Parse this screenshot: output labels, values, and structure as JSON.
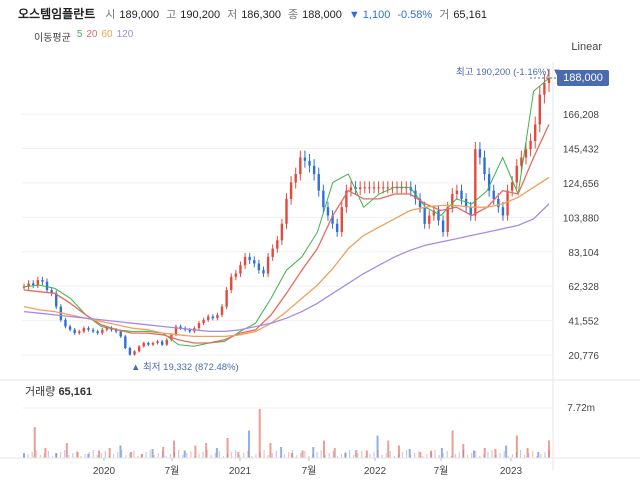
{
  "header": {
    "name": "오스템임플란트",
    "open_label": "시",
    "open": "189,000",
    "high_label": "고",
    "high": "190,200",
    "low_label": "저",
    "low": "186,300",
    "close_label": "종",
    "close": "188,000",
    "change": "▼ 1,100",
    "change_pct": "-0.58%",
    "volume_label": "거",
    "volume": "65,161"
  },
  "ma_legend": {
    "label": "이동평균",
    "items": [
      "5",
      "20",
      "60",
      "120"
    ]
  },
  "scale_button": "Linear",
  "current_price_label": "188,000",
  "high_marker": "최고 190,200 (-1.16%) ▼",
  "low_marker": "▲ 최저 19,332 (872.48%)",
  "volume_panel": {
    "label": "거래량",
    "value": "65,161"
  },
  "colors": {
    "up": "#e24a3b",
    "down": "#2f6fd8",
    "ma5": "#3cb44b",
    "ma20": "#e8695f",
    "ma60": "#f0a05a",
    "ma120": "#a58be6",
    "accent": "#4a6bb0"
  },
  "chart_data": {
    "type": "candlestick",
    "y_axis_labels": [
      "188,000",
      "166,208",
      "145,432",
      "124,656",
      "103,880",
      "83,104",
      "62,328",
      "41,552",
      "20,776"
    ],
    "y_axis_values": [
      188000,
      166208,
      145432,
      124656,
      103880,
      83104,
      62328,
      41552,
      20776
    ],
    "x_axis_labels": [
      "2020",
      "7월",
      "2021",
      "7월",
      "2022",
      "7월",
      "2023"
    ],
    "volume_axis_label": "7.72m",
    "ylim": [
      10000,
      200000
    ],
    "close_series": [
      62000,
      64000,
      63000,
      66000,
      65000,
      60000,
      58000,
      50000,
      42000,
      38000,
      36000,
      34000,
      35000,
      37000,
      36000,
      35000,
      34000,
      36000,
      37000,
      36000,
      35000,
      32000,
      25000,
      21000,
      23000,
      26000,
      28000,
      27000,
      28000,
      29000,
      27000,
      30000,
      33000,
      38000,
      37000,
      36000,
      35000,
      37000,
      40000,
      42000,
      44000,
      43000,
      45000,
      50000,
      60000,
      68000,
      70000,
      75000,
      80000,
      78000,
      76000,
      72000,
      70000,
      80000,
      85000,
      90000,
      100000,
      115000,
      125000,
      130000,
      140000,
      138000,
      135000,
      130000,
      120000,
      110000,
      105000,
      100000,
      95000,
      110000,
      120000,
      122000,
      121000,
      122000,
      122000,
      122000,
      122000,
      122000,
      122000,
      122000,
      122000,
      122000,
      122000,
      122000,
      120000,
      115000,
      110000,
      100000,
      105000,
      108000,
      102000,
      95000,
      110000,
      118000,
      120000,
      115000,
      110000,
      105000,
      145000,
      140000,
      130000,
      120000,
      115000,
      110000,
      105000,
      120000,
      125000,
      135000,
      140000,
      145000,
      150000,
      160000,
      178000,
      185000,
      188000
    ],
    "ma_series": [
      {
        "name": "5",
        "values": [
          62000,
          63000,
          61000,
          55000,
          45000,
          38000,
          36000,
          35000,
          35000,
          34000,
          27000,
          26000,
          28000,
          29000,
          35000,
          40000,
          55000,
          72000,
          80000,
          95000,
          125000,
          130000,
          110000,
          118000,
          122000,
          122000,
          110000,
          105000,
          115000,
          112000,
          120000,
          140000,
          118000,
          180000,
          188000
        ]
      },
      {
        "name": "20",
        "values": [
          60000,
          59000,
          58000,
          52000,
          45000,
          39000,
          36000,
          34000,
          34000,
          33000,
          30000,
          28000,
          28000,
          30000,
          34000,
          36000,
          45000,
          58000,
          72000,
          85000,
          105000,
          120000,
          115000,
          115000,
          118000,
          118000,
          112000,
          108000,
          110000,
          105000,
          110000,
          120000,
          118000,
          140000,
          160000
        ]
      },
      {
        "name": "60",
        "values": [
          50000,
          48000,
          47000,
          45000,
          43000,
          41000,
          39000,
          37000,
          36000,
          34000,
          33000,
          32000,
          32000,
          32000,
          33000,
          35000,
          40000,
          47000,
          55000,
          63000,
          73000,
          85000,
          93000,
          98000,
          103000,
          108000,
          110000,
          111000,
          111000,
          110000,
          110000,
          112000,
          116000,
          122000,
          128000
        ]
      },
      {
        "name": "120",
        "values": [
          47000,
          46000,
          45000,
          44000,
          43000,
          42000,
          41000,
          40000,
          39000,
          38000,
          37000,
          36000,
          35000,
          35000,
          36000,
          38000,
          40000,
          43000,
          47000,
          52000,
          58000,
          64000,
          70000,
          75000,
          80000,
          84000,
          87000,
          89000,
          91000,
          93000,
          95000,
          97000,
          99000,
          103000,
          112000
        ]
      }
    ],
    "volume_spikes": [
      0.1,
      0.62,
      0.2,
      0.1,
      0.3,
      0.12,
      0.08,
      0.15,
      0.2,
      0.25,
      0.12,
      0.08,
      0.18,
      0.22,
      0.35,
      0.15,
      0.25,
      0.3,
      0.2,
      0.4,
      0.12,
      0.55,
      0.98,
      0.3,
      0.22,
      0.1,
      0.15,
      0.22,
      0.35,
      0.2,
      0.1,
      0.16,
      0.15,
      0.45,
      0.35,
      0.25,
      0.18,
      0.12,
      0.15,
      0.2,
      0.55,
      0.28,
      0.15,
      0.2,
      0.18,
      0.25,
      0.45,
      0.2,
      0.12,
      0.35
    ]
  }
}
